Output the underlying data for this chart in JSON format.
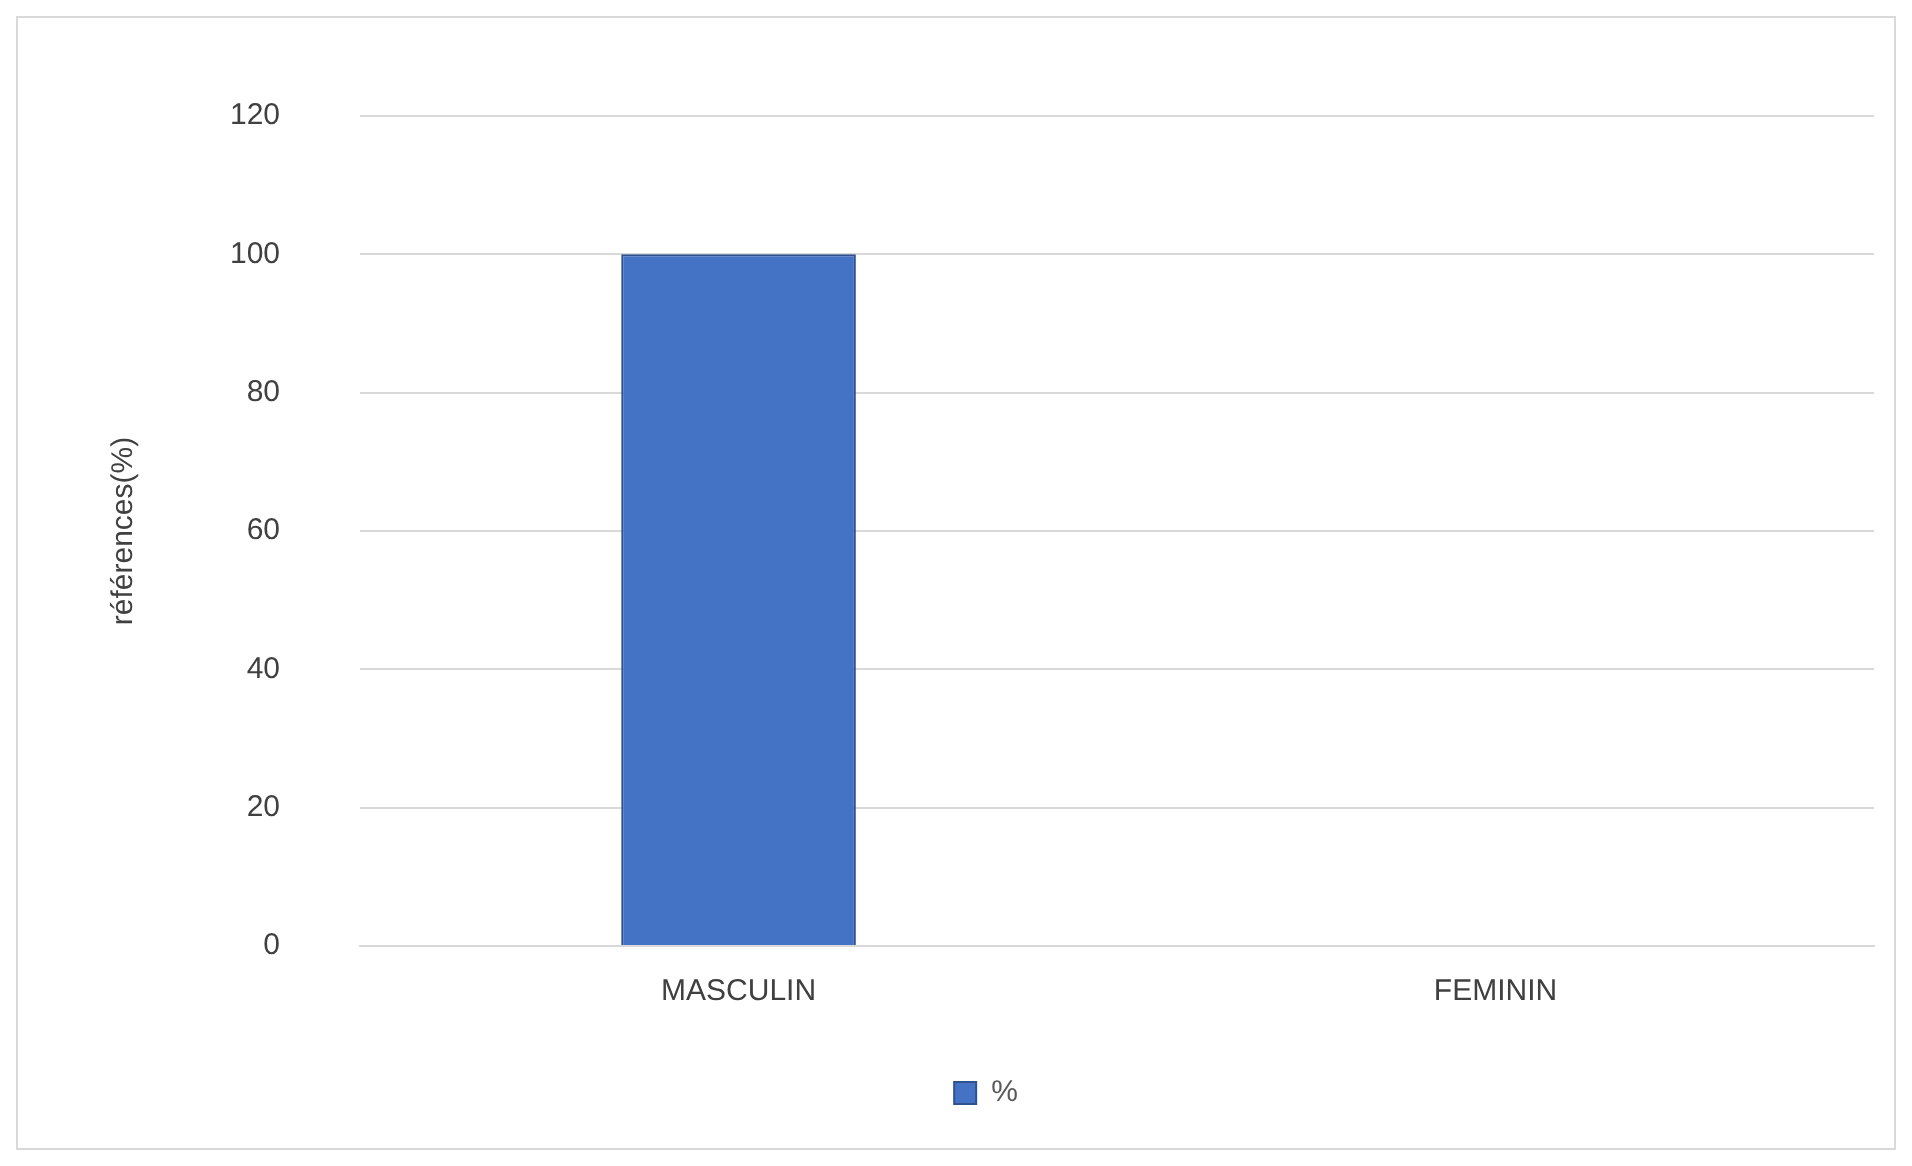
{
  "chart_data": {
    "type": "bar",
    "ylabel": "références(%)",
    "categories": [
      "MASCULIN",
      "FEMININ"
    ],
    "series": [
      {
        "name": "%",
        "color": "#4472c4",
        "values": [
          100,
          0
        ]
      }
    ],
    "ylim": [
      0,
      120
    ],
    "yticks": [
      0,
      20,
      40,
      60,
      80,
      100,
      120
    ],
    "grid": "y",
    "legend": "bottom"
  }
}
